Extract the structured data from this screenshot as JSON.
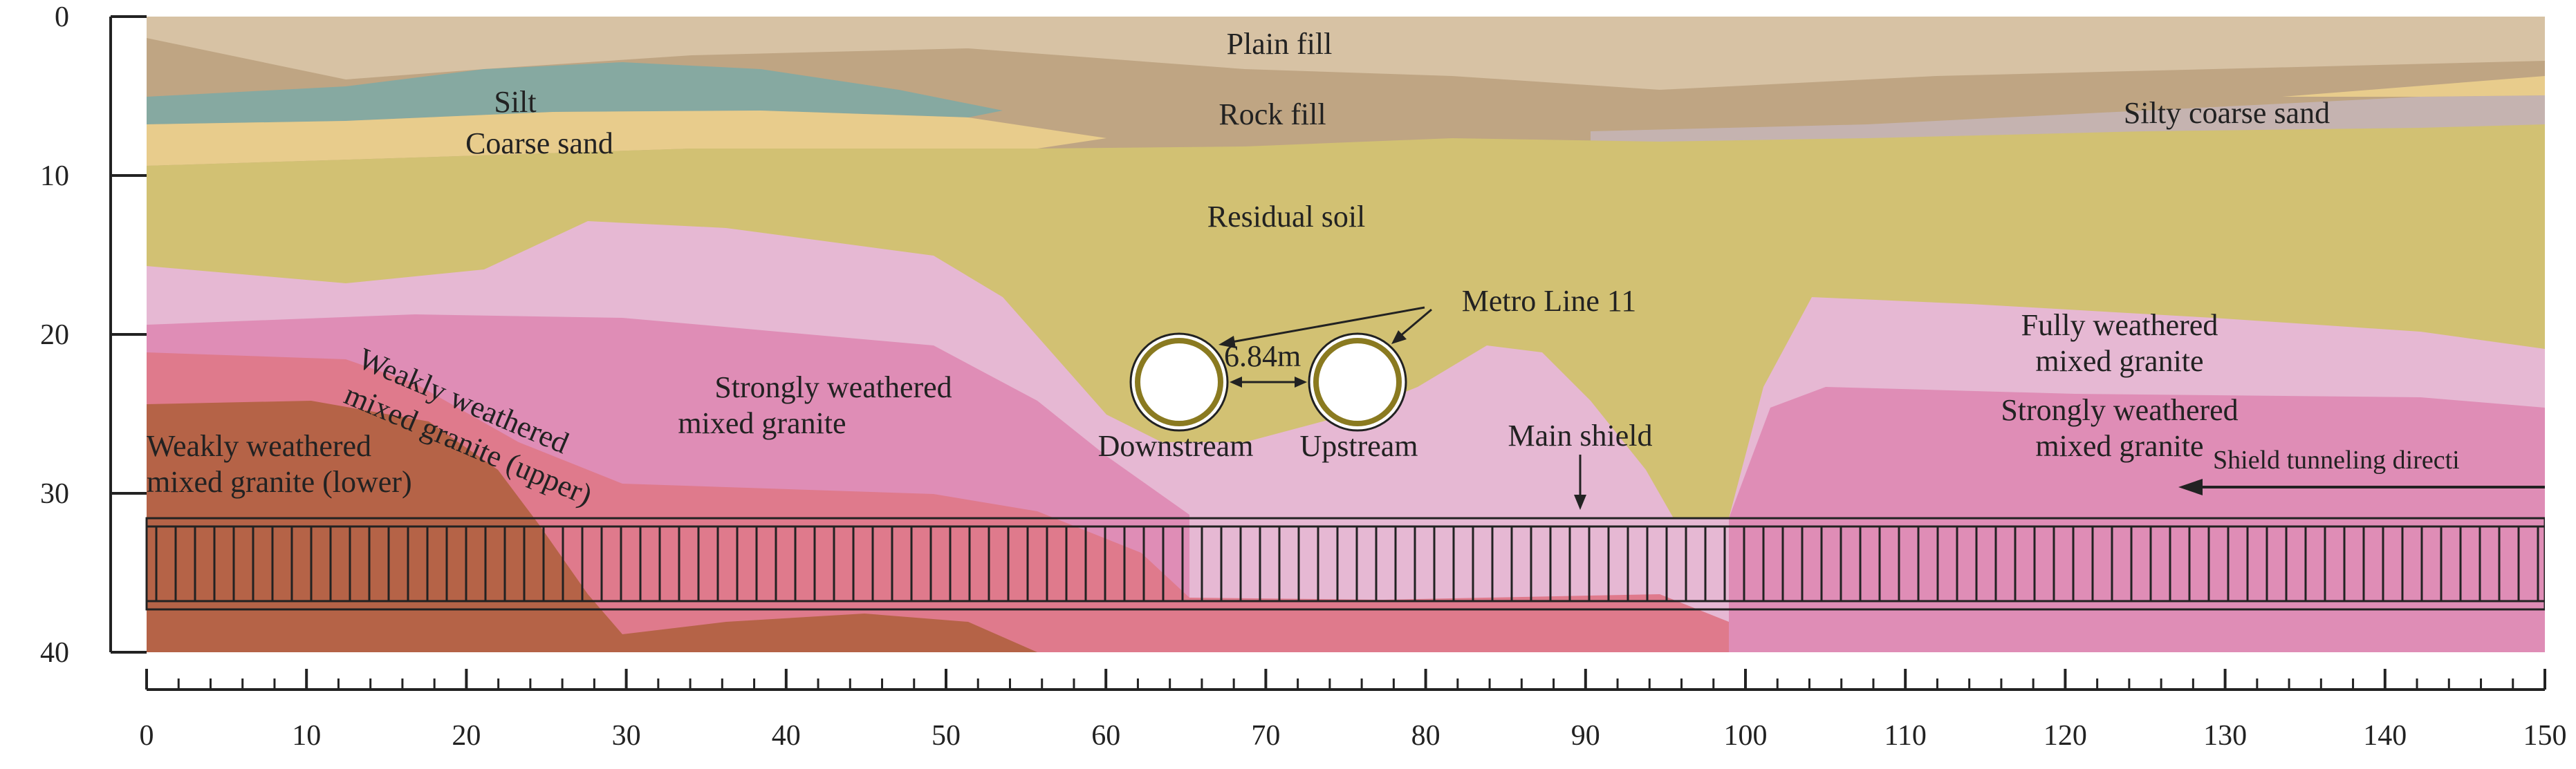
{
  "axes": {
    "x_ticks": [
      "0",
      "10",
      "20",
      "30",
      "40",
      "50",
      "60",
      "70",
      "80",
      "90",
      "100",
      "110",
      "120",
      "130",
      "140",
      "150"
    ],
    "y_ticks": [
      "0",
      "10",
      "20",
      "30",
      "40"
    ]
  },
  "layers": {
    "plain_fill": "Plain fill",
    "silt": "Silt",
    "rock_fill": "Rock fill",
    "silty_coarse_sand": "Silty coarse sand",
    "coarse_sand": "Coarse sand",
    "residual_soil": "Residual soil",
    "fully_weathered_1": "Fully weathered",
    "fully_weathered_2": "mixed granite",
    "strongly_weathered_left_1": "Strongly weathered",
    "strongly_weathered_left_2": "mixed granite",
    "strongly_weathered_right_1": "Strongly weathered",
    "strongly_weathered_right_2": "mixed granite",
    "weakly_upper_1": "Weakly weathered",
    "weakly_upper_2": "mixed granite (upper)",
    "weakly_lower_1": "Weakly weathered",
    "weakly_lower_2": "mixed granite (lower)"
  },
  "annotations": {
    "metro_line": "Metro Line 11",
    "spacing": "6.84m",
    "downstream": "Downstream",
    "upstream": "Upstream",
    "main_shield": "Main shield",
    "shield_direction": "Shield tunneling directi"
  },
  "colors": {
    "plain_fill": "#d7c2a4",
    "rock_fill": "#bfa583",
    "silt": "#86a9a1",
    "silty_coarse_sand": "#c5b3b0",
    "coarse_sand": "#e8cc8c",
    "residual_soil": "#d2c173",
    "fully_weathered": "#e6b8d3",
    "strongly_weathered": "#df8db6",
    "weakly_upper": "#df7a8c",
    "weakly_lower": "#b56347"
  }
}
